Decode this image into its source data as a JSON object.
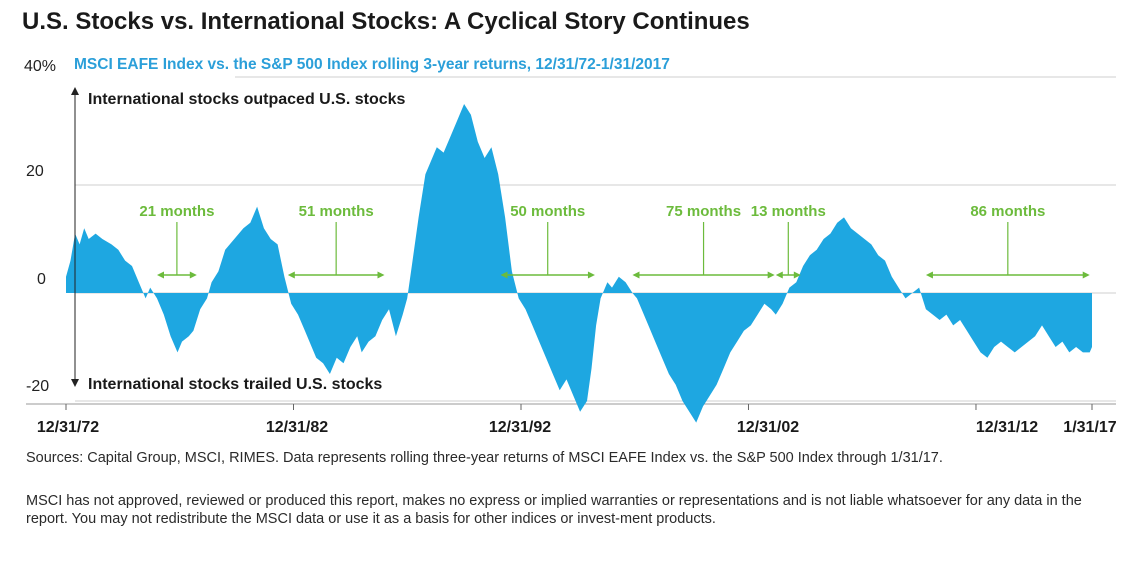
{
  "title": "U.S. Stocks vs. International Stocks: A Cyclical Story Continues",
  "subtitle": "MSCI EAFE Index vs. the S&P 500 Index rolling 3-year returns, 12/31/72-1/31/2017",
  "colors": {
    "area": "#1ea7e1",
    "subtitle": "#2b9fd9",
    "annotation": "#6cbb3c",
    "grid": "#cfcfcf"
  },
  "chart_data": {
    "type": "area",
    "title": "U.S. Stocks vs. International Stocks: A Cyclical Story Continues",
    "subtitle": "MSCI EAFE Index vs. the S&P 500 Index rolling 3-year returns, 12/31/72-1/31/2017",
    "y_ticks": [
      "40%",
      "20",
      "0",
      "-20"
    ],
    "x_ticks": [
      "12/31/72",
      "12/31/82",
      "12/31/92",
      "12/31/02",
      "12/31/12",
      "1/31/17"
    ],
    "ylim": [
      -24,
      40
    ],
    "x_range": [
      1972.0,
      2017.1
    ],
    "grid": "horizontal",
    "arrow_labels": {
      "up": "International stocks outpaced U.S. stocks",
      "down": "International stocks trailed U.S. stocks"
    },
    "series": [
      {
        "values": [
          [
            1972.0,
            3
          ],
          [
            1972.2,
            6
          ],
          [
            1972.4,
            11
          ],
          [
            1972.6,
            9
          ],
          [
            1972.8,
            12
          ],
          [
            1973.0,
            10
          ],
          [
            1973.3,
            11
          ],
          [
            1973.6,
            10
          ],
          [
            1974.0,
            9
          ],
          [
            1974.3,
            8
          ],
          [
            1974.6,
            6
          ],
          [
            1974.9,
            5
          ],
          [
            1975.2,
            2
          ],
          [
            1975.5,
            -1
          ],
          [
            1975.7,
            1
          ],
          [
            1976.0,
            -1
          ],
          [
            1976.3,
            -4
          ],
          [
            1976.6,
            -8
          ],
          [
            1976.9,
            -11
          ],
          [
            1977.1,
            -9
          ],
          [
            1977.4,
            -8
          ],
          [
            1977.6,
            -7
          ],
          [
            1977.9,
            -3
          ],
          [
            1978.2,
            -1
          ],
          [
            1978.4,
            2
          ],
          [
            1978.7,
            4
          ],
          [
            1979.0,
            8
          ],
          [
            1979.4,
            10
          ],
          [
            1979.8,
            12
          ],
          [
            1980.1,
            13
          ],
          [
            1980.4,
            16
          ],
          [
            1980.7,
            12
          ],
          [
            1981.0,
            10
          ],
          [
            1981.3,
            9
          ],
          [
            1981.6,
            3
          ],
          [
            1981.9,
            -2
          ],
          [
            1982.2,
            -4
          ],
          [
            1982.5,
            -7
          ],
          [
            1982.8,
            -10
          ],
          [
            1983.0,
            -12
          ],
          [
            1983.3,
            -13
          ],
          [
            1983.6,
            -15
          ],
          [
            1983.9,
            -12
          ],
          [
            1984.2,
            -13
          ],
          [
            1984.5,
            -10
          ],
          [
            1984.8,
            -8
          ],
          [
            1985.0,
            -11
          ],
          [
            1985.3,
            -9
          ],
          [
            1985.6,
            -8
          ],
          [
            1985.9,
            -5
          ],
          [
            1986.2,
            -3
          ],
          [
            1986.5,
            -8
          ],
          [
            1986.8,
            -4
          ],
          [
            1987.0,
            -1
          ],
          [
            1987.2,
            5
          ],
          [
            1987.5,
            14
          ],
          [
            1987.8,
            22
          ],
          [
            1988.0,
            24
          ],
          [
            1988.3,
            27
          ],
          [
            1988.6,
            26
          ],
          [
            1988.9,
            29
          ],
          [
            1989.2,
            32
          ],
          [
            1989.5,
            35
          ],
          [
            1989.8,
            33
          ],
          [
            1990.1,
            28
          ],
          [
            1990.4,
            25
          ],
          [
            1990.7,
            27
          ],
          [
            1991.0,
            22
          ],
          [
            1991.3,
            14
          ],
          [
            1991.6,
            4
          ],
          [
            1991.9,
            -1
          ],
          [
            1992.2,
            -3
          ],
          [
            1992.5,
            -6
          ],
          [
            1992.8,
            -9
          ],
          [
            1993.1,
            -12
          ],
          [
            1993.4,
            -15
          ],
          [
            1993.7,
            -18
          ],
          [
            1994.0,
            -16
          ],
          [
            1994.3,
            -19
          ],
          [
            1994.6,
            -22
          ],
          [
            1994.9,
            -20
          ],
          [
            1995.1,
            -14
          ],
          [
            1995.3,
            -6
          ],
          [
            1995.5,
            -1
          ],
          [
            1995.8,
            2
          ],
          [
            1996.0,
            1
          ],
          [
            1996.3,
            3
          ],
          [
            1996.6,
            2
          ],
          [
            1996.9,
            0
          ],
          [
            1997.1,
            -1
          ],
          [
            1997.3,
            -3
          ],
          [
            1997.6,
            -6
          ],
          [
            1997.9,
            -9
          ],
          [
            1998.2,
            -12
          ],
          [
            1998.5,
            -15
          ],
          [
            1998.8,
            -17
          ],
          [
            1999.1,
            -20
          ],
          [
            1999.4,
            -22
          ],
          [
            1999.7,
            -24
          ],
          [
            2000.0,
            -21
          ],
          [
            2000.3,
            -19
          ],
          [
            2000.6,
            -17
          ],
          [
            2000.9,
            -14
          ],
          [
            2001.2,
            -11
          ],
          [
            2001.5,
            -9
          ],
          [
            2001.8,
            -7
          ],
          [
            2002.1,
            -6
          ],
          [
            2002.4,
            -4
          ],
          [
            2002.7,
            -2
          ],
          [
            2003.0,
            -3
          ],
          [
            2003.2,
            -4
          ],
          [
            2003.5,
            -2
          ],
          [
            2003.8,
            1
          ],
          [
            2004.1,
            2
          ],
          [
            2004.4,
            5
          ],
          [
            2004.7,
            7
          ],
          [
            2005.0,
            8
          ],
          [
            2005.3,
            10
          ],
          [
            2005.6,
            11
          ],
          [
            2005.9,
            13
          ],
          [
            2006.2,
            14
          ],
          [
            2006.5,
            12
          ],
          [
            2006.8,
            11
          ],
          [
            2007.1,
            10
          ],
          [
            2007.4,
            9
          ],
          [
            2007.7,
            7
          ],
          [
            2008.0,
            6
          ],
          [
            2008.3,
            3
          ],
          [
            2008.6,
            1
          ],
          [
            2008.9,
            -1
          ],
          [
            2009.2,
            0
          ],
          [
            2009.5,
            1
          ],
          [
            2009.8,
            -3
          ],
          [
            2010.1,
            -4
          ],
          [
            2010.4,
            -5
          ],
          [
            2010.7,
            -4
          ],
          [
            2011.0,
            -6
          ],
          [
            2011.3,
            -5
          ],
          [
            2011.6,
            -7
          ],
          [
            2011.9,
            -9
          ],
          [
            2012.2,
            -11
          ],
          [
            2012.5,
            -12
          ],
          [
            2012.8,
            -10
          ],
          [
            2013.1,
            -9
          ],
          [
            2013.4,
            -10
          ],
          [
            2013.7,
            -11
          ],
          [
            2014.0,
            -10
          ],
          [
            2014.3,
            -9
          ],
          [
            2014.6,
            -8
          ],
          [
            2014.9,
            -6
          ],
          [
            2015.2,
            -8
          ],
          [
            2015.5,
            -10
          ],
          [
            2015.8,
            -9
          ],
          [
            2016.1,
            -11
          ],
          [
            2016.4,
            -10
          ],
          [
            2016.7,
            -11
          ],
          [
            2017.0,
            -11
          ],
          [
            2017.1,
            -10
          ]
        ]
      }
    ],
    "annotations": [
      {
        "label": "21 months",
        "start": 1976.0,
        "end": 1977.75
      },
      {
        "label": "51 months",
        "start": 1981.75,
        "end": 1986.0
      },
      {
        "label": "50 months",
        "start": 1991.1,
        "end": 1995.25
      },
      {
        "label": "75 months",
        "start": 1996.9,
        "end": 2003.15
      },
      {
        "label": "13 months",
        "start": 2003.2,
        "end": 2004.3
      },
      {
        "label": "86 months",
        "start": 2009.8,
        "end": 2017.0
      }
    ]
  },
  "notes": {
    "sources": "Sources: Capital Group, MSCI, RIMES. Data represents rolling three-year returns of MSCI EAFE Index vs. the S&P 500 Index through 1/31/17.",
    "disclaimer": "MSCI has not approved, reviewed or produced this report, makes no express or implied warranties or representations and is not liable whatsoever for any data in the report. You may not redistribute the MSCI data or use it as a basis for other indices or invest-ment products."
  }
}
